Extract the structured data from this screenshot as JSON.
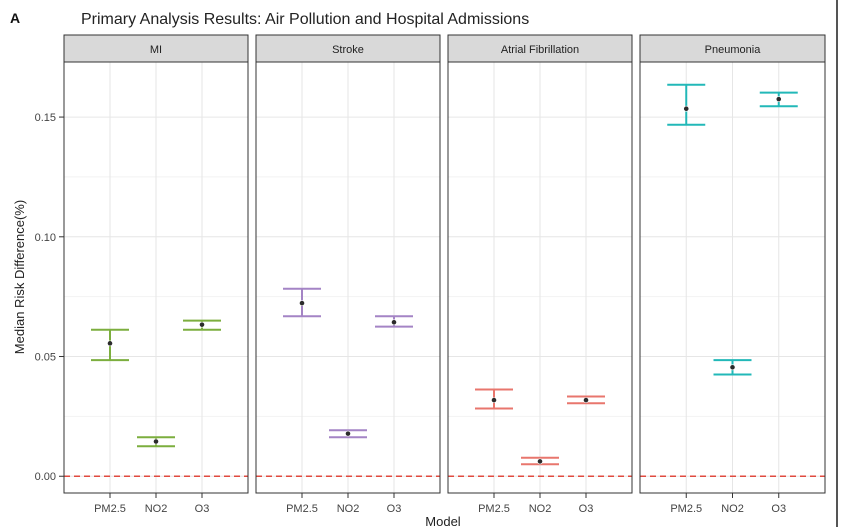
{
  "chart_data": {
    "type": "errorbar",
    "panel_letter": "A",
    "title": "Primary Analysis Results: Air Pollution and Hospital Admissions",
    "xlabel": "Model",
    "ylabel": "Median Risk Difference(%)",
    "ylim": [
      -0.007,
      0.173
    ],
    "yticks": [
      0.0,
      0.05,
      0.1,
      0.15
    ],
    "ytick_labels": [
      "0.00",
      "0.05",
      "0.10",
      "0.15"
    ],
    "categories": [
      "PM2.5",
      "NO2",
      "O3"
    ],
    "reference_line": {
      "y": 0,
      "color": "#e04a3f",
      "style": "dashed"
    },
    "grid": true,
    "panels": [
      {
        "name": "MI",
        "color": "#7cae3e",
        "points": [
          {
            "x": "PM2.5",
            "median": 0.0555,
            "lower": 0.0485,
            "upper": 0.0612
          },
          {
            "x": "NO2",
            "median": 0.0145,
            "lower": 0.0125,
            "upper": 0.0163
          },
          {
            "x": "O3",
            "median": 0.0633,
            "lower": 0.0612,
            "upper": 0.065
          }
        ]
      },
      {
        "name": "Stroke",
        "color": "#a484c5",
        "points": [
          {
            "x": "PM2.5",
            "median": 0.0723,
            "lower": 0.0668,
            "upper": 0.0783
          },
          {
            "x": "NO2",
            "median": 0.0178,
            "lower": 0.0163,
            "upper": 0.0192
          },
          {
            "x": "O3",
            "median": 0.0643,
            "lower": 0.0625,
            "upper": 0.0668
          }
        ]
      },
      {
        "name": "Atrial Fibrillation",
        "color": "#e8766d",
        "points": [
          {
            "x": "PM2.5",
            "median": 0.0318,
            "lower": 0.0283,
            "upper": 0.0362
          },
          {
            "x": "NO2",
            "median": 0.0062,
            "lower": 0.005,
            "upper": 0.0077
          },
          {
            "x": "O3",
            "median": 0.0318,
            "lower": 0.0305,
            "upper": 0.0333
          }
        ]
      },
      {
        "name": "Pneumonia",
        "color": "#22b8b8",
        "points": [
          {
            "x": "PM2.5",
            "median": 0.1535,
            "lower": 0.1468,
            "upper": 0.1635
          },
          {
            "x": "NO2",
            "median": 0.0455,
            "lower": 0.0425,
            "upper": 0.0485
          },
          {
            "x": "O3",
            "median": 0.1575,
            "lower": 0.1545,
            "upper": 0.1602
          }
        ]
      }
    ]
  }
}
